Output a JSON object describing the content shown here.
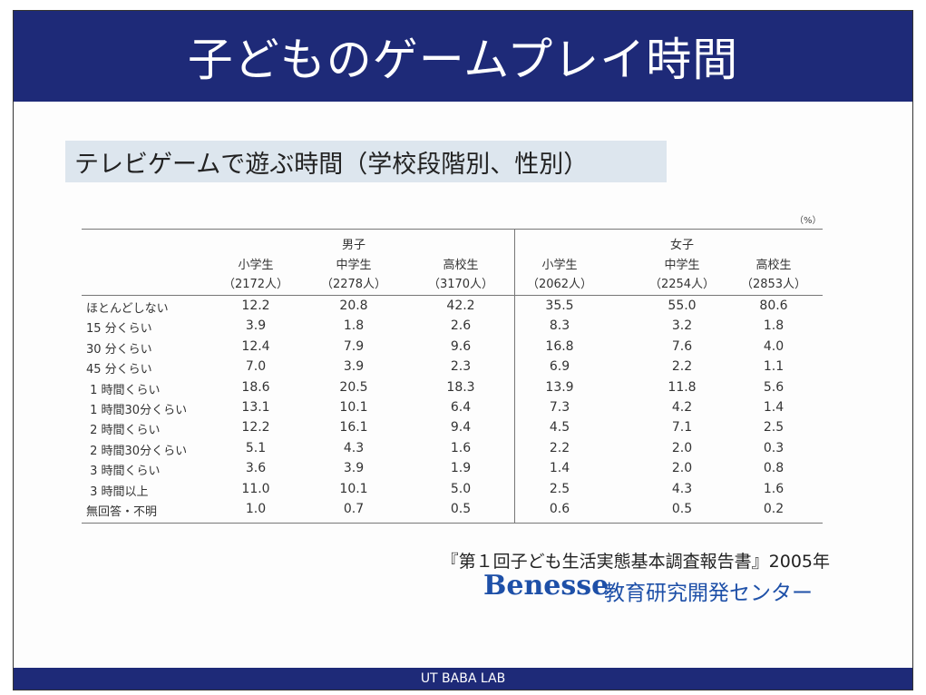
{
  "title": "子どものゲームプレイ時間",
  "subtitle": "テレビゲームで遊ぶ時間（学校段階別、性別）",
  "unit": "（%）",
  "groups": {
    "male": "男子",
    "female": "女子"
  },
  "columns": [
    {
      "label": "小学生",
      "n": "（2172人）"
    },
    {
      "label": "中学生",
      "n": "（2278人）"
    },
    {
      "label": "高校生",
      "n": "（3170人）"
    },
    {
      "label": "小学生",
      "n": "（2062人）"
    },
    {
      "label": "中学生",
      "n": "（2254人）"
    },
    {
      "label": "高校生",
      "n": "（2853人）"
    }
  ],
  "rows": [
    {
      "label": "ほとんどしない",
      "values": [
        "12.2",
        "20.8",
        "42.2",
        "35.5",
        "55.0",
        "80.6"
      ]
    },
    {
      "label": "15 分くらい",
      "values": [
        "3.9",
        "1.8",
        "2.6",
        "8.3",
        "3.2",
        "1.8"
      ]
    },
    {
      "label": "30 分くらい",
      "values": [
        "12.4",
        "7.9",
        "9.6",
        "16.8",
        "7.6",
        "4.0"
      ]
    },
    {
      "label": "45 分くらい",
      "values": [
        "7.0",
        "3.9",
        "2.3",
        "6.9",
        "2.2",
        "1.1"
      ]
    },
    {
      "label": " 1 時間くらい",
      "values": [
        "18.6",
        "20.5",
        "18.3",
        "13.9",
        "11.8",
        "5.6"
      ]
    },
    {
      "label": " 1 時間30分くらい",
      "values": [
        "13.1",
        "10.1",
        "6.4",
        "7.3",
        "4.2",
        "1.4"
      ]
    },
    {
      "label": " 2 時間くらい",
      "values": [
        "12.2",
        "16.1",
        "9.4",
        "4.5",
        "7.1",
        "2.5"
      ]
    },
    {
      "label": " 2 時間30分くらい",
      "values": [
        "5.1",
        "4.3",
        "1.6",
        "2.2",
        "2.0",
        "0.3"
      ]
    },
    {
      "label": " 3 時間くらい",
      "values": [
        "3.6",
        "3.9",
        "1.9",
        "1.4",
        "2.0",
        "0.8"
      ]
    },
    {
      "label": " 3 時間以上",
      "values": [
        "11.0",
        "10.1",
        "5.0",
        "2.5",
        "4.3",
        "1.6"
      ]
    },
    {
      "label": "無回答・不明",
      "values": [
        "1.0",
        "0.7",
        "0.5",
        "0.6",
        "0.5",
        "0.2"
      ]
    }
  ],
  "citation": "『第１回子ども生活実態基本調査報告書』2005年",
  "logo": {
    "brand": "Benesse",
    "org": "教育研究開発センター"
  },
  "footer": "UT BABA LAB",
  "colors": {
    "navy": "#1e2a78",
    "subtitle_bg": "#dde6ee",
    "logo_blue": "#1e50a8"
  }
}
